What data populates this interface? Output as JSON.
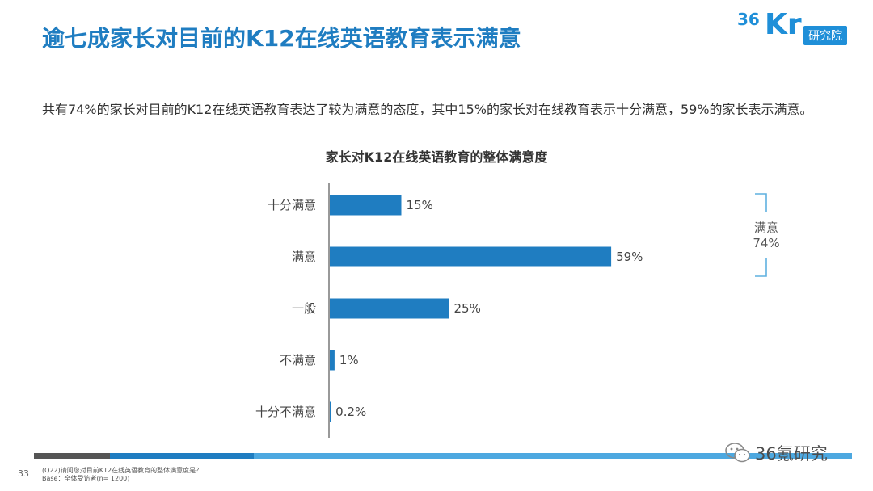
{
  "header": {
    "title": "逾七成家长对目前的K12在线英语教育表示满意",
    "logo_number": "36",
    "logo_letters": "Kr",
    "logo_box_text": "研究院"
  },
  "summary": "共有74%的家长对目前的K12在线英语教育表达了较为满意的态度，其中15%的家长对在线教育表示十分满意，59%的家长表示满意。",
  "chart_data": {
    "type": "bar",
    "orientation": "horizontal",
    "title": "家长对K12在线英语教育的整体满意度",
    "categories": [
      "十分满意",
      "满意",
      "一般",
      "不满意",
      "十分不满意"
    ],
    "values": [
      15,
      59,
      25,
      1,
      0.2
    ],
    "value_labels": [
      "15%",
      "59%",
      "25%",
      "1%",
      "0.2%"
    ],
    "unit": "%",
    "xlim": [
      0,
      100
    ],
    "grid": false,
    "bar_color": "#1f7dc1",
    "annotation": {
      "group": [
        "十分满意",
        "满意"
      ],
      "label": "满意",
      "value": "74%"
    }
  },
  "footer": {
    "page_number": "33",
    "footnote_question": "(Q22)请问您对目前K12在线英语教育的整体满意度是？",
    "footnote_base": "Base：全体受访者(n= 1200)",
    "bar_colors": [
      "#555555",
      "#1f7dc1",
      "#4da8e0"
    ],
    "watermark_text": "36氪研究"
  }
}
